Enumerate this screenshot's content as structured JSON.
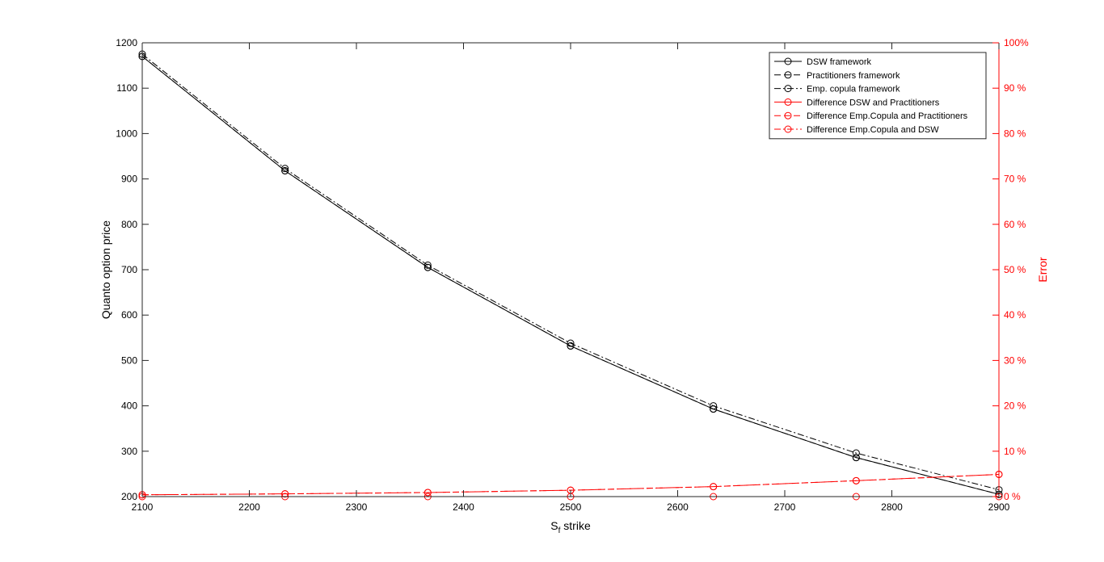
{
  "chart_data": {
    "type": "line",
    "xlabel_main": "S",
    "xlabel_sub": "f",
    "xlabel_rest": " strike",
    "ylabel_left": "Quanto option price",
    "ylabel_right": "Error",
    "xlim": [
      2100,
      2900
    ],
    "ylim_left": [
      200,
      1200
    ],
    "ylim_right": [
      0,
      100
    ],
    "x_ticks": [
      "2100",
      "2200",
      "2300",
      "2400",
      "2500",
      "2600",
      "2700",
      "2800",
      "2900"
    ],
    "y_left_ticks": [
      "200",
      "300",
      "400",
      "500",
      "600",
      "700",
      "800",
      "900",
      "1000",
      "1100",
      "1200"
    ],
    "y_right_ticks": [
      "0 %",
      "10 %",
      "20 %",
      "30 %",
      "40 %",
      "50 %",
      "60 %",
      "70 %",
      "80 %",
      "90 %",
      "100%"
    ],
    "x": [
      2100,
      2233.33,
      2366.67,
      2500,
      2633.33,
      2766.67,
      2900
    ],
    "legend_position": "top-right",
    "colors": {
      "price": "#000000",
      "error": "#ff0000"
    },
    "series": [
      {
        "name": "DSW framework",
        "axis": "left",
        "color": "#000000",
        "dash": "solid",
        "values": [
          1170,
          918,
          705,
          532,
          393,
          286,
          205
        ]
      },
      {
        "name": "Practitioners framework",
        "axis": "left",
        "color": "#000000",
        "dash": "dashed",
        "values": [
          1170,
          918,
          705,
          532,
          393,
          286,
          205
        ]
      },
      {
        "name": "Emp. copula framework",
        "axis": "left",
        "color": "#000000",
        "dash": "dashdot",
        "values": [
          1175,
          923,
          710,
          538,
          400,
          296,
          215
        ]
      },
      {
        "name": "Difference DSW and Practitioners",
        "axis": "right",
        "color": "#ff0000",
        "dash": "solid",
        "values": [
          0,
          0,
          0,
          0,
          0,
          0,
          0
        ]
      },
      {
        "name": "Difference Emp.Copula and Practitioners",
        "axis": "right",
        "color": "#ff0000",
        "dash": "dashed",
        "values": [
          0.4,
          0.6,
          0.9,
          1.4,
          2.2,
          3.5,
          4.9
        ]
      },
      {
        "name": "Difference Emp.Copula and DSW",
        "axis": "right",
        "color": "#ff0000",
        "dash": "dashdot",
        "values": [
          0.4,
          0.6,
          0.9,
          1.4,
          2.2,
          3.5,
          4.9
        ]
      }
    ]
  }
}
